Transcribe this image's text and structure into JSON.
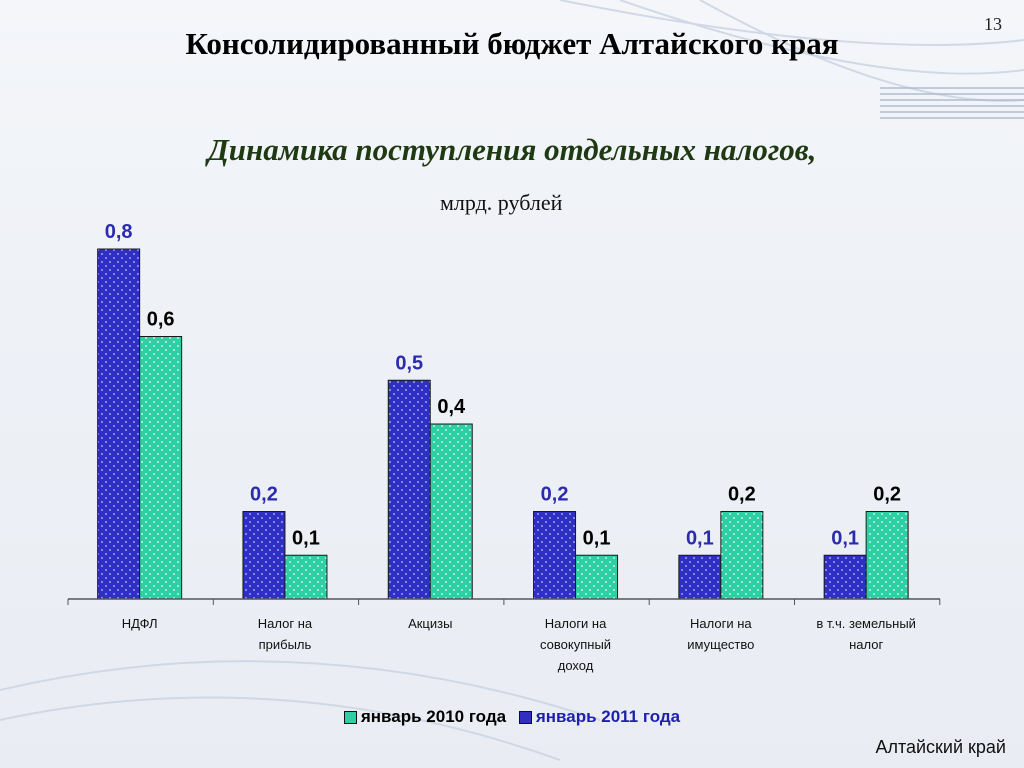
{
  "slide_number": "13",
  "title": "Консолидированный бюджет Алтайского края",
  "subtitle": "Динамика поступления отдельных налогов,",
  "unit": "млрд. рублей",
  "footer": "Алтайский край",
  "colors": {
    "jan2011": "#2f2fc4",
    "jan2010": "#2ecfa5",
    "label2011": "#2b2bb0",
    "label2010": "#000000"
  },
  "chart_data": {
    "type": "bar",
    "categories": [
      [
        "НДФЛ"
      ],
      [
        "Налог на",
        "прибыль"
      ],
      [
        "Акцизы"
      ],
      [
        "Налоги на",
        "совокупный",
        "доход"
      ],
      [
        "Налоги на",
        "имущество"
      ],
      [
        "в т.ч. земельный",
        "налог"
      ]
    ],
    "series": [
      {
        "name": "январь 2011 года",
        "values": [
          0.8,
          0.2,
          0.5,
          0.2,
          0.1,
          0.1
        ],
        "labels": [
          "0,8",
          "0,2",
          "0,5",
          "0,2",
          "0,1",
          "0,1"
        ]
      },
      {
        "name": "январь 2010 года",
        "values": [
          0.6,
          0.1,
          0.4,
          0.1,
          0.2,
          0.2
        ],
        "labels": [
          "0,6",
          "0,1",
          "0,4",
          "0,1",
          "0,2",
          "0,2"
        ]
      }
    ],
    "ylim": [
      0,
      0.8
    ],
    "legend_position": "bottom",
    "grid": false
  }
}
